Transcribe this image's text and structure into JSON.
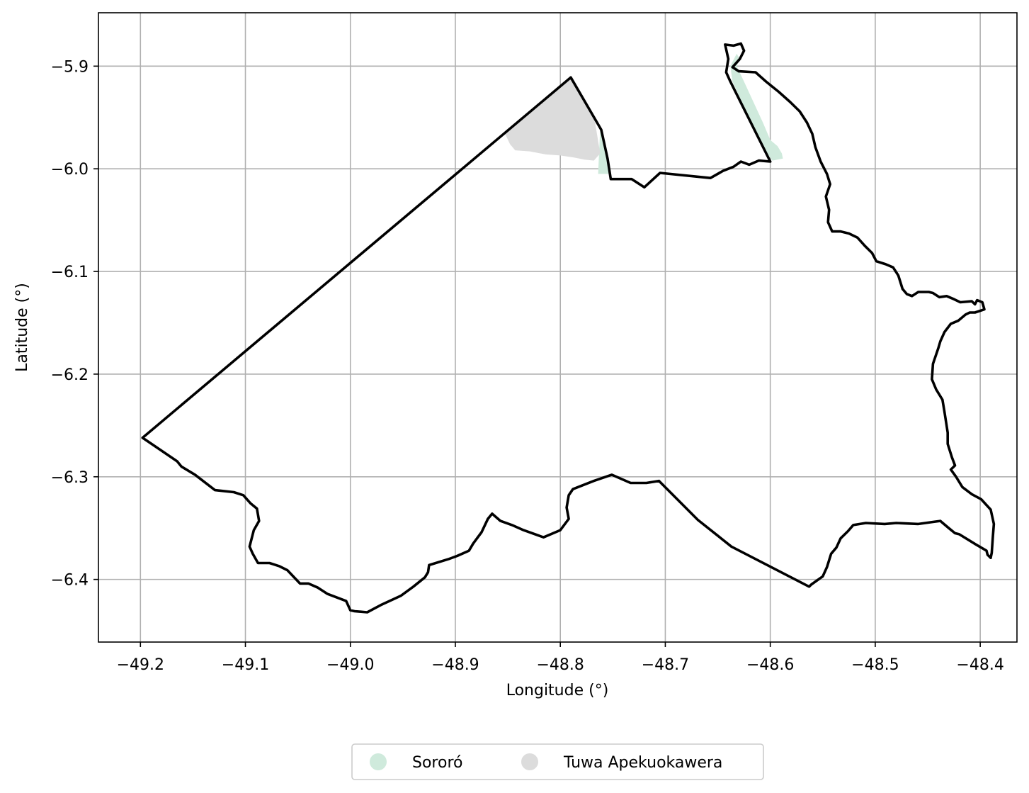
{
  "chart_data": {
    "type": "map",
    "xlabel": "Longitude (°)",
    "ylabel": "Latitude (°)",
    "xlim": [
      -49.24,
      -48.365
    ],
    "ylim": [
      -6.461,
      -5.848
    ],
    "grid": true,
    "x_ticks": [
      -49.2,
      -49.1,
      -49.0,
      -48.9,
      -48.8,
      -48.7,
      -48.6,
      -48.5,
      -48.4
    ],
    "y_ticks": [
      -5.9,
      -6.0,
      -6.1,
      -6.2,
      -6.3,
      -6.4
    ],
    "x_tick_labels": [
      "−49.2",
      "−49.1",
      "−49.0",
      "−48.9",
      "−48.8",
      "−48.7",
      "−48.6",
      "−48.5",
      "−48.4"
    ],
    "y_tick_labels": [
      "−5.9",
      "−6.0",
      "−6.1",
      "−6.2",
      "−6.3",
      "−6.4"
    ],
    "legend_position": "bottom-center",
    "legend": [
      {
        "label": "Sororó",
        "color": "#cfeadc"
      },
      {
        "label": "Tuwa Apekuokawera",
        "color": "#dcdcdc"
      }
    ],
    "boundary_color": "#000000",
    "boundary": [
      [
        -49.198,
        -6.262
      ],
      [
        -48.79,
        -5.911
      ],
      [
        -48.761,
        -5.962
      ],
      [
        -48.755,
        -5.99
      ],
      [
        -48.752,
        -6.01
      ],
      [
        -48.732,
        -6.01
      ],
      [
        -48.72,
        -6.018
      ],
      [
        -48.705,
        -6.004
      ],
      [
        -48.657,
        -6.009
      ],
      [
        -48.645,
        -6.002
      ],
      [
        -48.635,
        -5.998
      ],
      [
        -48.628,
        -5.993
      ],
      [
        -48.62,
        -5.996
      ],
      [
        -48.611,
        -5.992
      ],
      [
        -48.6,
        -5.993
      ],
      [
        -48.638,
        -5.915
      ],
      [
        -48.642,
        -5.906
      ],
      [
        -48.64,
        -5.893
      ],
      [
        -48.643,
        -5.879
      ],
      [
        -48.635,
        -5.88
      ],
      [
        -48.628,
        -5.878
      ],
      [
        -48.625,
        -5.885
      ],
      [
        -48.629,
        -5.893
      ],
      [
        -48.636,
        -5.901
      ],
      [
        -48.63,
        -5.905
      ],
      [
        -48.614,
        -5.906
      ],
      [
        -48.604,
        -5.915
      ],
      [
        -48.592,
        -5.925
      ],
      [
        -48.581,
        -5.935
      ],
      [
        -48.572,
        -5.944
      ],
      [
        -48.565,
        -5.955
      ],
      [
        -48.56,
        -5.966
      ],
      [
        -48.557,
        -5.979
      ],
      [
        -48.552,
        -5.993
      ],
      [
        -48.546,
        -6.005
      ],
      [
        -48.543,
        -6.015
      ],
      [
        -48.547,
        -6.027
      ],
      [
        -48.544,
        -6.04
      ],
      [
        -48.545,
        -6.052
      ],
      [
        -48.541,
        -6.061
      ],
      [
        -48.533,
        -6.061
      ],
      [
        -48.525,
        -6.063
      ],
      [
        -48.517,
        -6.067
      ],
      [
        -48.51,
        -6.075
      ],
      [
        -48.503,
        -6.082
      ],
      [
        -48.499,
        -6.09
      ],
      [
        -48.49,
        -6.093
      ],
      [
        -48.483,
        -6.096
      ],
      [
        -48.478,
        -6.104
      ],
      [
        -48.474,
        -6.117
      ],
      [
        -48.47,
        -6.122
      ],
      [
        -48.465,
        -6.124
      ],
      [
        -48.459,
        -6.12
      ],
      [
        -48.449,
        -6.12
      ],
      [
        -48.445,
        -6.121
      ],
      [
        -48.439,
        -6.125
      ],
      [
        -48.432,
        -6.124
      ],
      [
        -48.425,
        -6.127
      ],
      [
        -48.419,
        -6.13
      ],
      [
        -48.408,
        -6.129
      ],
      [
        -48.405,
        -6.132
      ],
      [
        -48.403,
        -6.128
      ],
      [
        -48.398,
        -6.13
      ],
      [
        -48.396,
        -6.137
      ],
      [
        -48.405,
        -6.14
      ],
      [
        -48.41,
        -6.14
      ],
      [
        -48.414,
        -6.142
      ],
      [
        -48.421,
        -6.148
      ],
      [
        -48.428,
        -6.151
      ],
      [
        -48.434,
        -6.159
      ],
      [
        -48.438,
        -6.168
      ],
      [
        -48.44,
        -6.175
      ],
      [
        -48.445,
        -6.19
      ],
      [
        -48.446,
        -6.205
      ],
      [
        -48.442,
        -6.215
      ],
      [
        -48.436,
        -6.225
      ],
      [
        -48.434,
        -6.237
      ],
      [
        -48.431,
        -6.257
      ],
      [
        -48.431,
        -6.268
      ],
      [
        -48.427,
        -6.281
      ],
      [
        -48.424,
        -6.289
      ],
      [
        -48.428,
        -6.293
      ],
      [
        -48.423,
        -6.3
      ],
      [
        -48.417,
        -6.31
      ],
      [
        -48.408,
        -6.317
      ],
      [
        -48.399,
        -6.322
      ],
      [
        -48.39,
        -6.332
      ],
      [
        -48.387,
        -6.346
      ],
      [
        -48.388,
        -6.359
      ],
      [
        -48.389,
        -6.374
      ],
      [
        -48.39,
        -6.379
      ],
      [
        -48.393,
        -6.376
      ],
      [
        -48.394,
        -6.372
      ],
      [
        -48.404,
        -6.366
      ],
      [
        -48.42,
        -6.356
      ],
      [
        -48.424,
        -6.355
      ],
      [
        -48.43,
        -6.35
      ],
      [
        -48.438,
        -6.343
      ],
      [
        -48.445,
        -6.344
      ],
      [
        -48.459,
        -6.346
      ],
      [
        -48.48,
        -6.345
      ],
      [
        -48.491,
        -6.346
      ],
      [
        -48.509,
        -6.345
      ],
      [
        -48.521,
        -6.347
      ],
      [
        -48.526,
        -6.353
      ],
      [
        -48.533,
        -6.36
      ],
      [
        -48.537,
        -6.369
      ],
      [
        -48.542,
        -6.375
      ],
      [
        -48.546,
        -6.388
      ],
      [
        -48.55,
        -6.397
      ],
      [
        -48.561,
        -6.405
      ],
      [
        -48.563,
        -6.407
      ],
      [
        -48.637,
        -6.368
      ],
      [
        -48.669,
        -6.342
      ],
      [
        -48.706,
        -6.304
      ],
      [
        -48.718,
        -6.306
      ],
      [
        -48.733,
        -6.306
      ],
      [
        -48.751,
        -6.298
      ],
      [
        -48.768,
        -6.304
      ],
      [
        -48.788,
        -6.312
      ],
      [
        -48.792,
        -6.318
      ],
      [
        -48.794,
        -6.33
      ],
      [
        -48.792,
        -6.341
      ],
      [
        -48.8,
        -6.352
      ],
      [
        -48.816,
        -6.359
      ],
      [
        -48.835,
        -6.352
      ],
      [
        -48.846,
        -6.347
      ],
      [
        -48.857,
        -6.343
      ],
      [
        -48.865,
        -6.336
      ],
      [
        -48.869,
        -6.341
      ],
      [
        -48.875,
        -6.354
      ],
      [
        -48.883,
        -6.365
      ],
      [
        -48.887,
        -6.372
      ],
      [
        -48.898,
        -6.377
      ],
      [
        -48.906,
        -6.38
      ],
      [
        -48.925,
        -6.386
      ],
      [
        -48.926,
        -6.393
      ],
      [
        -48.929,
        -6.398
      ],
      [
        -48.94,
        -6.407
      ],
      [
        -48.952,
        -6.416
      ],
      [
        -48.971,
        -6.425
      ],
      [
        -48.984,
        -6.432
      ],
      [
        -48.996,
        -6.431
      ],
      [
        -49.0,
        -6.43
      ],
      [
        -49.004,
        -6.421
      ],
      [
        -49.022,
        -6.414
      ],
      [
        -49.031,
        -6.408
      ],
      [
        -49.04,
        -6.404
      ],
      [
        -49.048,
        -6.404
      ],
      [
        -49.06,
        -6.391
      ],
      [
        -49.068,
        -6.387
      ],
      [
        -49.077,
        -6.384
      ],
      [
        -49.088,
        -6.384
      ],
      [
        -49.093,
        -6.375
      ],
      [
        -49.096,
        -6.368
      ],
      [
        -49.092,
        -6.352
      ],
      [
        -49.087,
        -6.343
      ],
      [
        -49.089,
        -6.331
      ],
      [
        -49.095,
        -6.326
      ],
      [
        -49.102,
        -6.318
      ],
      [
        -49.111,
        -6.315
      ],
      [
        -49.129,
        -6.313
      ],
      [
        -49.148,
        -6.298
      ],
      [
        -49.161,
        -6.29
      ],
      [
        -49.165,
        -6.285
      ],
      [
        -49.198,
        -6.262
      ]
    ],
    "regions": [
      {
        "name": "Sororó",
        "color": "#cfeadc",
        "polygon": [
          [
            -48.762,
            -5.96
          ],
          [
            -48.765,
            -5.955
          ],
          [
            -48.761,
            -5.962
          ],
          [
            -48.755,
            -5.99
          ],
          [
            -48.754,
            -6.005
          ],
          [
            -48.764,
            -6.005
          ],
          [
            -48.762,
            -5.96
          ]
        ]
      },
      {
        "name": "Sororó",
        "color": "#cfeadc",
        "polygon": [
          [
            -48.638,
            -5.9
          ],
          [
            -48.632,
            -5.888
          ],
          [
            -48.629,
            -5.893
          ],
          [
            -48.632,
            -5.9
          ],
          [
            -48.625,
            -5.915
          ],
          [
            -48.616,
            -5.935
          ],
          [
            -48.607,
            -5.955
          ],
          [
            -48.6,
            -5.972
          ],
          [
            -48.593,
            -5.978
          ],
          [
            -48.589,
            -5.985
          ],
          [
            -48.588,
            -5.99
          ],
          [
            -48.598,
            -5.992
          ],
          [
            -48.605,
            -5.982
          ],
          [
            -48.615,
            -5.96
          ],
          [
            -48.627,
            -5.935
          ],
          [
            -48.636,
            -5.915
          ],
          [
            -48.638,
            -5.9
          ]
        ]
      },
      {
        "name": "Tuwa Apekuokawera",
        "color": "#dcdcdc",
        "polygon": [
          [
            -48.853,
            -5.965
          ],
          [
            -48.79,
            -5.911
          ],
          [
            -48.768,
            -5.948
          ],
          [
            -48.762,
            -5.985
          ],
          [
            -48.768,
            -5.992
          ],
          [
            -48.777,
            -5.991
          ],
          [
            -48.787,
            -5.989
          ],
          [
            -48.8,
            -5.987
          ],
          [
            -48.814,
            -5.986
          ],
          [
            -48.829,
            -5.983
          ],
          [
            -48.843,
            -5.982
          ],
          [
            -48.848,
            -5.976
          ],
          [
            -48.853,
            -5.965
          ]
        ]
      }
    ]
  }
}
